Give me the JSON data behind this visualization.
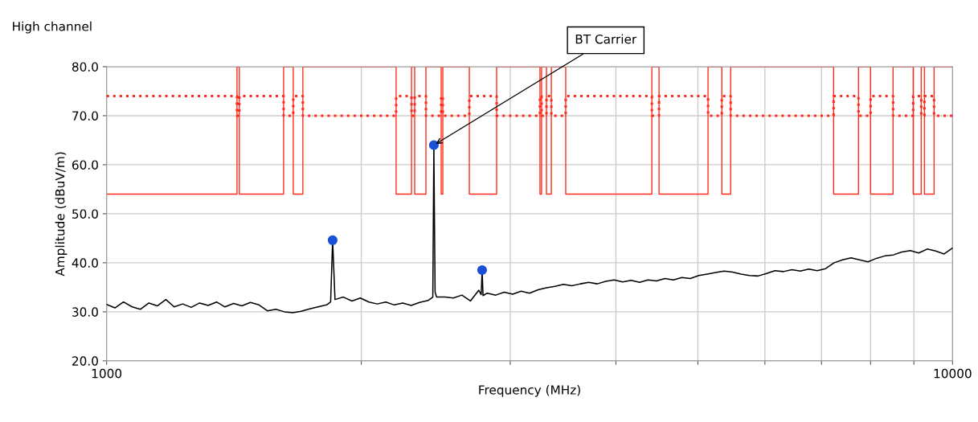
{
  "chart_data": {
    "type": "line",
    "title": "High channel",
    "xlabel": "Frequency (MHz)",
    "ylabel": "Amplitude (dBuV/m)",
    "log": "x",
    "xlim": [
      1000,
      10000
    ],
    "ylim": [
      20,
      80
    ],
    "xticks": [
      1000,
      {
        "value": 2000,
        "label": null
      },
      {
        "value": 3000,
        "label": null
      },
      {
        "value": 4000,
        "label": null
      },
      {
        "value": 5000,
        "label": null
      },
      {
        "value": 6000,
        "label": null
      },
      {
        "value": 7000,
        "label": null
      },
      {
        "value": 8000,
        "label": null
      },
      {
        "value": 9000,
        "label": null
      },
      10000
    ],
    "yticks": [
      {
        "value": 20,
        "label": "20.0"
      },
      {
        "value": 30,
        "label": "30.0"
      },
      {
        "value": 40,
        "label": "40.0"
      },
      {
        "value": 50,
        "label": "50.0"
      },
      {
        "value": 60,
        "label": "60.0"
      },
      {
        "value": 70,
        "label": "70.0"
      },
      {
        "value": 80,
        "label": "80.0"
      }
    ],
    "grid": true,
    "annotations": [
      {
        "text": "BT Carrier",
        "x": 2437,
        "y": 64
      }
    ],
    "series": [
      {
        "type": "step",
        "color": "#ff2a1a",
        "line_style": "solid",
        "x": [
          1000,
          1426,
          1435,
          1619,
          1662,
          1706,
          2199,
          2293,
          2313,
          2385,
          2486,
          2497,
          2684,
          2891,
          3253,
          3267,
          3311,
          3355,
          3489,
          4411,
          4498,
          5140,
          5336,
          5466,
          7234,
          7741,
          8000,
          8505,
          8983,
          9182,
          9263,
          9509,
          10000
        ],
        "values": [
          54,
          80,
          54,
          80,
          54,
          80,
          54,
          80,
          54,
          80,
          54,
          80,
          54,
          80,
          54,
          80,
          54,
          80,
          54,
          80,
          54,
          80,
          54,
          80,
          54,
          80,
          54,
          80,
          54,
          80,
          54,
          80,
          80
        ]
      },
      {
        "type": "step",
        "color": "#ff2a1a",
        "line_style": "dotted",
        "x": [
          1000,
          1426,
          1435,
          1619,
          1662,
          1706,
          2199,
          2293,
          2313,
          2385,
          2486,
          2497,
          2684,
          2891,
          3253,
          3267,
          3311,
          3355,
          3489,
          4411,
          4498,
          5140,
          5336,
          5466,
          7234,
          7741,
          8000,
          8505,
          8983,
          9182,
          9263,
          9509,
          10000
        ],
        "values": [
          74,
          70,
          74,
          70,
          74,
          70,
          74,
          70,
          74,
          70,
          74,
          70,
          74,
          70,
          74,
          70,
          74,
          70,
          74,
          70,
          74,
          70,
          74,
          70,
          74,
          70,
          74,
          70,
          74,
          70,
          74,
          70,
          70
        ]
      },
      {
        "color": "#000000",
        "line_style": "solid",
        "x": [
          1000,
          1023,
          1047,
          1072,
          1096,
          1122,
          1148,
          1175,
          1202,
          1230,
          1259,
          1288,
          1318,
          1349,
          1380,
          1413,
          1445,
          1479,
          1514,
          1549,
          1585,
          1622,
          1660,
          1698,
          1738,
          1778,
          1820,
          1840,
          1850,
          1862,
          1905,
          1950,
          1995,
          2042,
          2089,
          2138,
          2188,
          2239,
          2291,
          2344,
          2399,
          2430,
          2437,
          2445,
          2455,
          2512,
          2570,
          2630,
          2692,
          2754,
          2772,
          2779,
          2786,
          2818,
          2884,
          2951,
          3020,
          3090,
          3162,
          3236,
          3311,
          3388,
          3467,
          3548,
          3631,
          3715,
          3802,
          3890,
          3981,
          4074,
          4169,
          4266,
          4365,
          4467,
          4571,
          4677,
          4786,
          4898,
          5012,
          5129,
          5248,
          5370,
          5495,
          5623,
          5754,
          5888,
          6026,
          6166,
          6310,
          6457,
          6607,
          6761,
          6918,
          7079,
          7244,
          7413,
          7586,
          7762,
          7943,
          8128,
          8318,
          8511,
          8710,
          8913,
          9120,
          9333,
          9550,
          9772,
          10000
        ],
        "values": [
          31.5,
          30.8,
          32,
          31,
          30.5,
          31.8,
          31.2,
          32.5,
          31,
          31.6,
          30.9,
          31.8,
          31.3,
          32,
          31,
          31.7,
          31.2,
          31.9,
          31.4,
          30.2,
          30.5,
          30,
          29.8,
          30.1,
          30.6,
          31,
          31.4,
          32,
          44.6,
          32.5,
          33,
          32.2,
          32.8,
          32,
          31.6,
          32,
          31.4,
          31.8,
          31.3,
          31.9,
          32.3,
          33,
          64,
          34,
          33,
          33,
          32.8,
          33.4,
          32.2,
          34.4,
          33.5,
          38.5,
          33.3,
          33.8,
          33.4,
          34,
          33.6,
          34.2,
          33.8,
          34.5,
          34.9,
          35.2,
          35.6,
          35.3,
          35.7,
          36,
          35.7,
          36.2,
          36.5,
          36.1,
          36.4,
          36,
          36.5,
          36.3,
          36.8,
          36.5,
          37,
          36.8,
          37.4,
          37.7,
          38,
          38.3,
          38.1,
          37.7,
          37.4,
          37.3,
          37.8,
          38.4,
          38.2,
          38.6,
          38.3,
          38.7,
          38.4,
          38.8,
          40,
          40.6,
          41,
          40.6,
          40.2,
          40.9,
          41.4,
          41.6,
          42.2,
          42.5,
          42,
          42.8,
          42.4,
          41.8,
          43
        ]
      },
      {
        "type": "scatter",
        "color": "#1a4fd6",
        "marker": "circle",
        "x": [
          1850,
          2437,
          2779
        ],
        "values": [
          44.6,
          64,
          38.5
        ]
      }
    ]
  }
}
